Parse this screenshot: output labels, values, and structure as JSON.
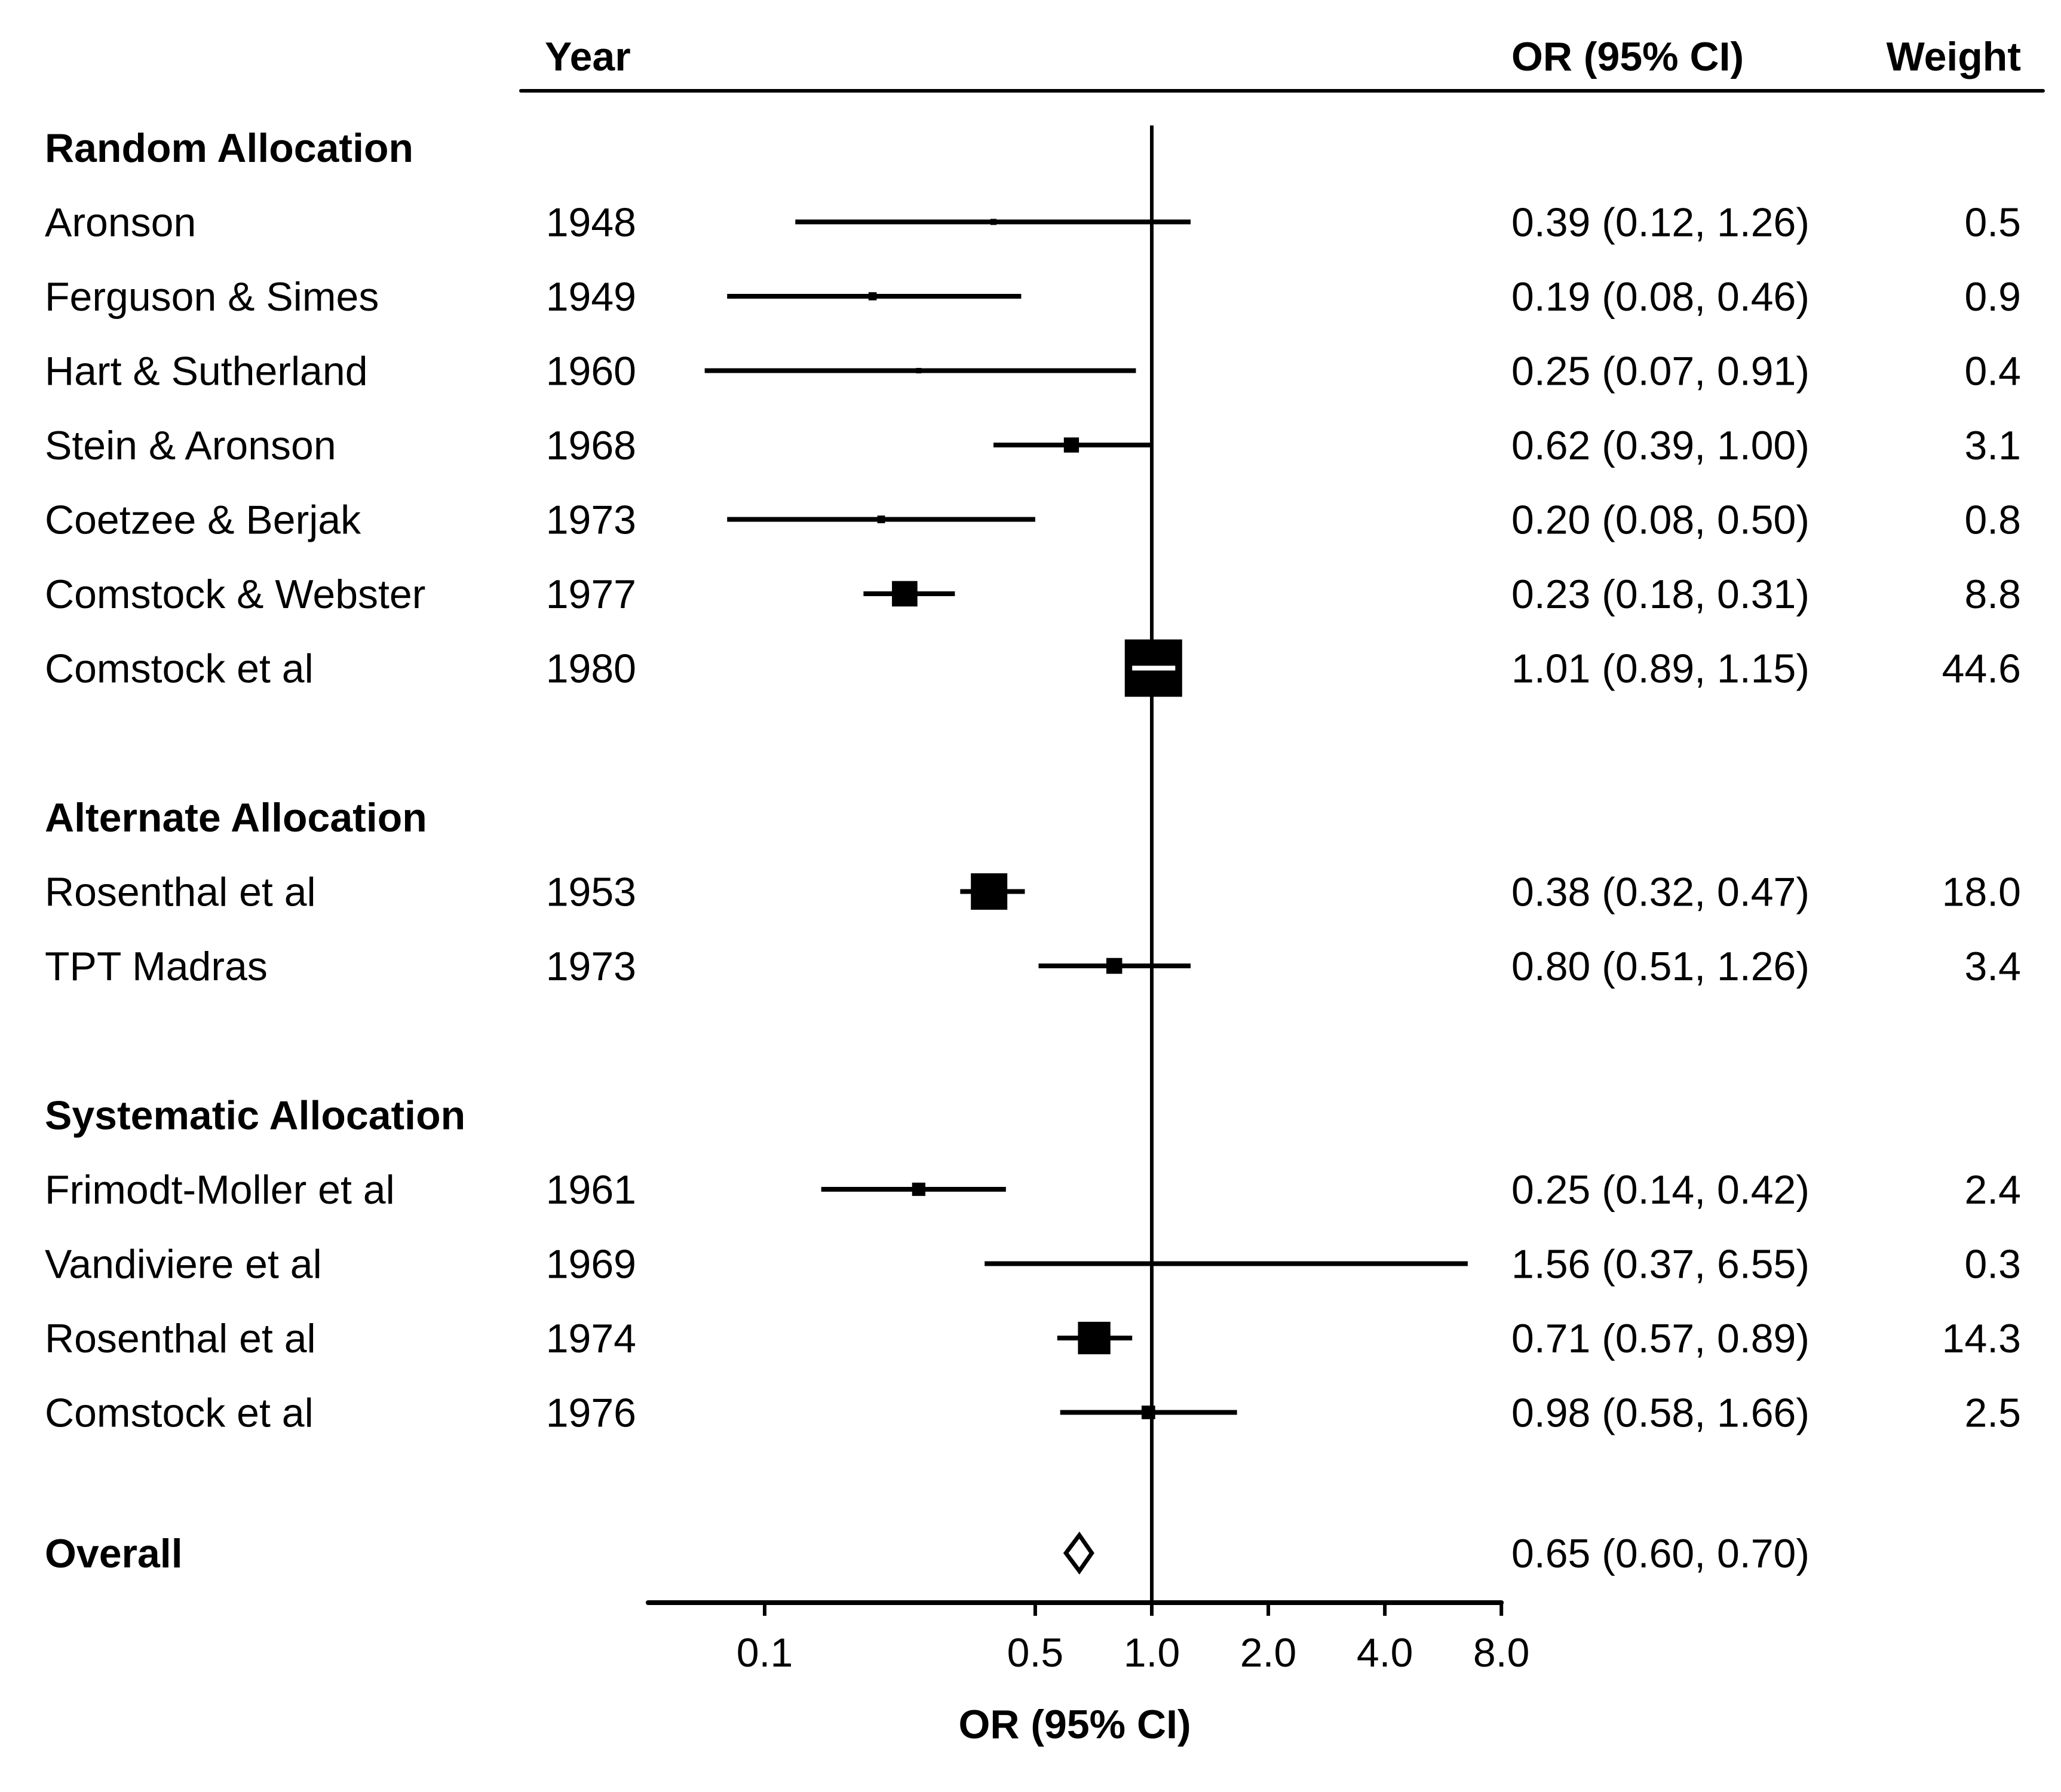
{
  "chart_data": {
    "type": "forest",
    "title": "",
    "xlabel": "OR (95% CI)",
    "xscale": "log",
    "xlim": [
      0.05,
      8.0
    ],
    "reference_value": 1.0,
    "xticks": [
      0.1,
      0.5,
      1.0,
      2.0,
      4.0,
      8.0
    ],
    "xtick_labels": [
      "0.1",
      "0.5",
      "1.0",
      "2.0",
      "4.0",
      "8.0"
    ],
    "columns": {
      "year": "Year",
      "estimate": "OR (95% CI)",
      "weight": "Weight"
    },
    "groups": [
      {
        "name": "Random Allocation",
        "studies": [
          {
            "study": "Aronson",
            "year": "1948",
            "or": 0.39,
            "lower": 0.12,
            "upper": 1.26,
            "label": "0.39 (0.12, 1.26)",
            "weight": 0.5,
            "weight_label": "0.5"
          },
          {
            "study": "Ferguson & Simes",
            "year": "1949",
            "or": 0.19,
            "lower": 0.08,
            "upper": 0.46,
            "label": "0.19 (0.08, 0.46)",
            "weight": 0.9,
            "weight_label": "0.9"
          },
          {
            "study": "Hart & Sutherland",
            "year": "1960",
            "or": 0.25,
            "lower": 0.07,
            "upper": 0.91,
            "label": "0.25 (0.07, 0.91)",
            "weight": 0.4,
            "weight_label": "0.4"
          },
          {
            "study": "Stein & Aronson",
            "year": "1968",
            "or": 0.62,
            "lower": 0.39,
            "upper": 1.0,
            "label": "0.62 (0.39, 1.00)",
            "weight": 3.1,
            "weight_label": "3.1"
          },
          {
            "study": "Coetzee & Berjak",
            "year": "1973",
            "or": 0.2,
            "lower": 0.08,
            "upper": 0.5,
            "label": "0.20 (0.08, 0.50)",
            "weight": 0.8,
            "weight_label": "0.8"
          },
          {
            "study": "Comstock & Webster",
            "year": "1977",
            "or": 0.23,
            "lower": 0.18,
            "upper": 0.31,
            "label": "0.23 (0.18, 0.31)",
            "weight": 8.8,
            "weight_label": "8.8"
          },
          {
            "study": "Comstock et al",
            "year": "1980",
            "or": 1.01,
            "lower": 0.89,
            "upper": 1.15,
            "label": "1.01 (0.89, 1.15)",
            "weight": 44.6,
            "weight_label": "44.6"
          }
        ]
      },
      {
        "name": "Alternate Allocation",
        "studies": [
          {
            "study": "Rosenthal et al",
            "year": "1953",
            "or": 0.38,
            "lower": 0.32,
            "upper": 0.47,
            "label": "0.38 (0.32, 0.47)",
            "weight": 18.0,
            "weight_label": "18.0"
          },
          {
            "study": "TPT Madras",
            "year": "1973",
            "or": 0.8,
            "lower": 0.51,
            "upper": 1.26,
            "label": "0.80 (0.51, 1.26)",
            "weight": 3.4,
            "weight_label": "3.4"
          }
        ]
      },
      {
        "name": "Systematic Allocation",
        "studies": [
          {
            "study": "Frimodt-Moller et al",
            "year": "1961",
            "or": 0.25,
            "lower": 0.14,
            "upper": 0.42,
            "label": "0.25 (0.14, 0.42)",
            "weight": 2.4,
            "weight_label": "2.4"
          },
          {
            "study": "Vandiviere et al",
            "year": "1969",
            "or": 1.56,
            "lower": 0.37,
            "upper": 6.55,
            "label": "1.56 (0.37, 6.55)",
            "weight": 0.3,
            "weight_label": "0.3"
          },
          {
            "study": "Rosenthal et al",
            "year": "1974",
            "or": 0.71,
            "lower": 0.57,
            "upper": 0.89,
            "label": "0.71 (0.57, 0.89)",
            "weight": 14.3,
            "weight_label": "14.3"
          },
          {
            "study": "Comstock et al",
            "year": "1976",
            "or": 0.98,
            "lower": 0.58,
            "upper": 1.66,
            "label": "0.98 (0.58, 1.66)",
            "weight": 2.5,
            "weight_label": "2.5"
          }
        ]
      }
    ],
    "overall": {
      "name": "Overall",
      "or": 0.65,
      "lower": 0.6,
      "upper": 0.7,
      "label": "0.65 (0.60, 0.70)"
    },
    "colors": {
      "marks": "#000000",
      "background": "#ffffff"
    }
  }
}
